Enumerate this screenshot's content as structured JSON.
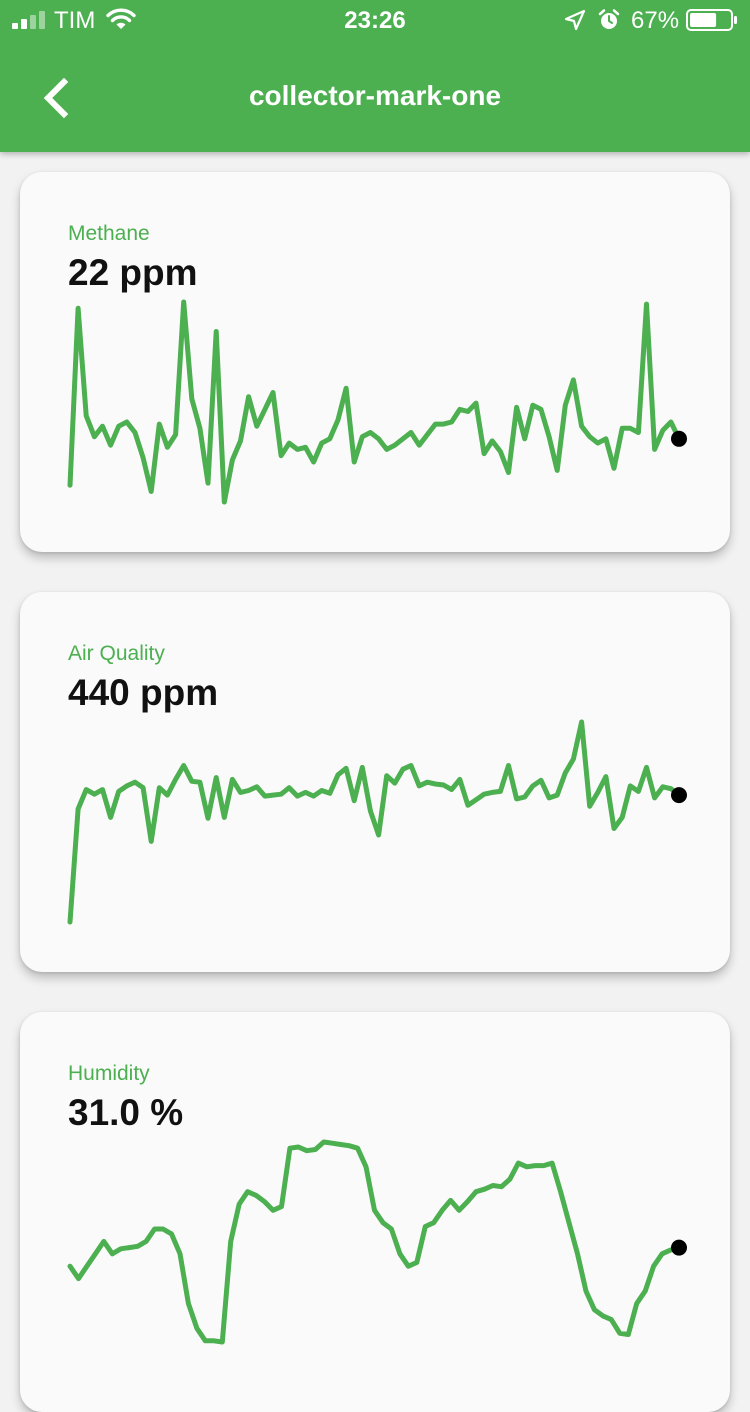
{
  "status_bar": {
    "carrier": "TIM",
    "time": "23:26",
    "battery_percent": "67%",
    "battery_level": 0.67,
    "icons": [
      "signal-icon",
      "wifi-icon",
      "location-arrow-icon",
      "alarm-clock-icon",
      "battery-icon"
    ]
  },
  "header": {
    "title": "collector-mark-one",
    "back_icon": "chevron-left-icon"
  },
  "colors": {
    "accent": "#4caf50",
    "line": "#4caf50",
    "marker": "#000000",
    "card_background": "#fafafa",
    "value_text": "#111111"
  },
  "sensors": [
    {
      "label": "Methane",
      "value": "22 ppm",
      "series": [
        10,
        94,
        43,
        33,
        38,
        29,
        38,
        40,
        35,
        23,
        7,
        39,
        28,
        34,
        97,
        51,
        37,
        11,
        83,
        2,
        22,
        31,
        52,
        38,
        46,
        54,
        24,
        30,
        27,
        28,
        21,
        30,
        32,
        41,
        56,
        21,
        33,
        35,
        32,
        27,
        29,
        32,
        35,
        29,
        34,
        39,
        39,
        40,
        46,
        45,
        49,
        25,
        31,
        26,
        16,
        47,
        32,
        48,
        46,
        33,
        17,
        48,
        60,
        38,
        33,
        30,
        32,
        18,
        37,
        37,
        35,
        96,
        27,
        36,
        40,
        32
      ]
    },
    {
      "label": "Air Quality",
      "value": "440 ppm",
      "series": [
        200,
        322,
        343,
        338,
        343,
        313,
        341,
        347,
        351,
        345,
        287,
        345,
        337,
        354,
        369,
        352,
        351,
        312,
        356,
        313,
        354,
        340,
        342,
        346,
        336,
        337,
        338,
        345,
        336,
        340,
        336,
        342,
        339,
        359,
        366,
        331,
        367,
        320,
        294,
        358,
        350,
        365,
        369,
        347,
        351,
        349,
        348,
        343,
        354,
        326,
        332,
        338,
        340,
        341,
        369,
        333,
        335,
        347,
        353,
        334,
        337,
        361,
        376,
        416,
        325,
        340,
        357,
        301,
        313,
        347,
        341,
        367,
        334,
        346,
        344,
        337
      ]
    },
    {
      "label": "Humidity",
      "value": "31.0 %",
      "series": [
        34,
        33,
        34,
        35,
        36,
        35,
        35.4,
        35.5,
        35.6,
        36,
        37,
        37,
        36.6,
        35,
        31,
        29,
        28,
        28,
        27.9,
        36,
        39,
        40,
        39.7,
        39.2,
        38.5,
        38.8,
        43.5,
        43.6,
        43.3,
        43.4,
        44,
        43.9,
        43.8,
        43.7,
        43.5,
        42,
        38.5,
        37.5,
        37,
        35,
        34,
        34.3,
        37.2,
        37.5,
        38.5,
        39.3,
        38.5,
        39.2,
        40,
        40.2,
        40.5,
        40.4,
        41,
        42.3,
        42,
        42.1,
        42.1,
        42.3,
        40,
        37.5,
        35,
        32,
        30.5,
        30,
        29.7,
        28.6,
        28.5,
        31,
        32,
        34,
        35,
        35.3,
        35.5
      ]
    }
  ]
}
